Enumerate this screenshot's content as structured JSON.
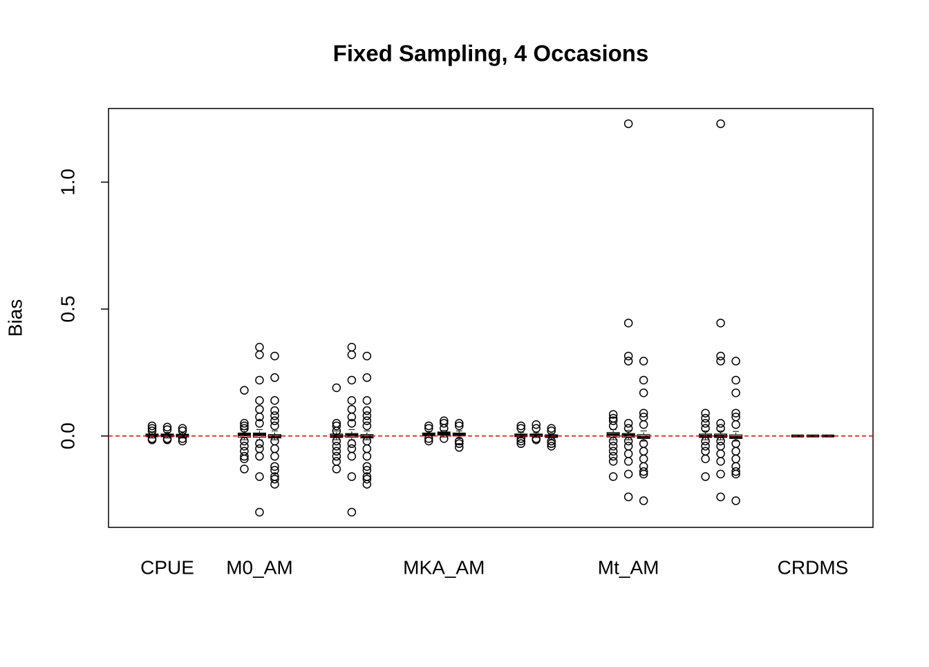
{
  "chart_data": {
    "type": "box",
    "title": "Fixed Sampling, 4 Occasions",
    "y_label": "Bias",
    "categories": [
      "CPUE",
      "M0_AM",
      null,
      "MKA_AM",
      null,
      "Mt_AM",
      null,
      "CRDMS"
    ],
    "ylim": [
      -0.36,
      1.29
    ],
    "yticks": [
      {
        "value": 0,
        "label": "0.0"
      },
      {
        "value": 0.5,
        "label": "0.5"
      },
      {
        "value": 1,
        "label": "1.0"
      }
    ],
    "reference_line": 0,
    "reference_color": "#e00000",
    "color": "#000000",
    "boxes": [
      [
        {
          "stats": [
            -0.008,
            -0.003,
            0.003,
            0.008,
            0.014
          ],
          "out": [
            0.04,
            0.03,
            0.02,
            -0.01,
            -0.015
          ]
        },
        {
          "stats": [
            -0.008,
            -0.003,
            0.003,
            0.008,
            0.014
          ],
          "out": [
            0.035,
            0.025,
            -0.01,
            -0.015
          ]
        },
        {
          "stats": [
            -0.008,
            -0.004,
            0.002,
            0.007,
            0.012
          ],
          "out": [
            0.03,
            0.02,
            -0.01,
            -0.02
          ]
        }
      ],
      [
        {
          "stats": [
            -0.015,
            -0.005,
            0.005,
            0.012,
            0.025
          ],
          "out": [
            0.18,
            0.05,
            0.04,
            0.03,
            -0.02,
            -0.04,
            -0.06,
            -0.08,
            -0.09,
            -0.13
          ]
        },
        {
          "stats": [
            -0.015,
            -0.005,
            0.005,
            0.012,
            0.025
          ],
          "out": [
            0.35,
            0.32,
            0.22,
            0.14,
            0.105,
            0.075,
            0.05,
            -0.03,
            -0.05,
            -0.08,
            -0.16,
            -0.3
          ]
        },
        {
          "stats": [
            -0.015,
            -0.008,
            -0.002,
            0.006,
            0.02
          ],
          "out": [
            0.315,
            0.23,
            0.14,
            0.1,
            0.08,
            0.06,
            0.04,
            -0.02,
            -0.05,
            -0.08,
            -0.12,
            -0.135,
            -0.16,
            -0.17,
            -0.19
          ]
        }
      ],
      [
        {
          "stats": [
            -0.015,
            -0.006,
            0.0,
            0.008,
            0.02
          ],
          "out": [
            0.19,
            0.05,
            0.04,
            0.02,
            -0.02,
            -0.04,
            -0.06,
            -0.08,
            -0.1,
            -0.13
          ]
        },
        {
          "stats": [
            -0.015,
            -0.005,
            0.003,
            0.01,
            0.025
          ],
          "out": [
            0.35,
            0.32,
            0.22,
            0.14,
            0.105,
            0.075,
            0.05,
            -0.03,
            -0.05,
            -0.08,
            -0.16,
            -0.3
          ]
        },
        {
          "stats": [
            -0.015,
            -0.008,
            -0.002,
            0.006,
            0.02
          ],
          "out": [
            0.315,
            0.23,
            0.14,
            0.1,
            0.08,
            0.06,
            0.04,
            -0.02,
            -0.05,
            -0.08,
            -0.12,
            -0.135,
            -0.16,
            -0.17,
            -0.19
          ]
        }
      ],
      [
        {
          "stats": [
            -0.006,
            0.0,
            0.006,
            0.012,
            0.018
          ],
          "out": [
            0.04,
            0.03,
            -0.01,
            -0.02
          ]
        },
        {
          "stats": [
            -0.004,
            0.003,
            0.01,
            0.016,
            0.022
          ],
          "out": [
            0.06,
            0.05,
            0.03,
            -0.01
          ]
        },
        {
          "stats": [
            -0.01,
            0.0,
            0.006,
            0.012,
            0.02
          ],
          "out": [
            0.05,
            0.04,
            -0.02,
            -0.03,
            -0.045
          ]
        }
      ],
      [
        {
          "stats": [
            -0.008,
            -0.003,
            0.002,
            0.008,
            0.014
          ],
          "out": [
            0.04,
            0.03,
            -0.01,
            -0.02,
            -0.03
          ]
        },
        {
          "stats": [
            -0.006,
            -0.002,
            0.003,
            0.008,
            0.013
          ],
          "out": [
            0.045,
            0.03,
            -0.01,
            -0.015
          ]
        },
        {
          "stats": [
            -0.012,
            -0.006,
            -0.001,
            0.005,
            0.01
          ],
          "out": [
            0.03,
            0.02,
            -0.02,
            -0.03,
            -0.04
          ]
        }
      ],
      [
        {
          "stats": [
            -0.015,
            -0.004,
            0.006,
            0.014,
            0.025
          ],
          "out": [
            0.085,
            0.07,
            0.06,
            0.04,
            -0.02,
            -0.04,
            -0.06,
            -0.08,
            -0.1,
            -0.16
          ]
        },
        {
          "stats": [
            -0.015,
            -0.005,
            0.003,
            0.01,
            0.022
          ],
          "out": [
            1.23,
            0.445,
            0.315,
            0.295,
            0.05,
            0.03,
            -0.02,
            -0.04,
            -0.07,
            -0.1,
            -0.15,
            -0.24
          ]
        },
        {
          "stats": [
            -0.02,
            -0.01,
            -0.003,
            0.006,
            0.02
          ],
          "out": [
            0.295,
            0.22,
            0.17,
            0.09,
            0.075,
            0.045,
            -0.03,
            -0.06,
            -0.09,
            -0.12,
            -0.14,
            -0.15,
            -0.255
          ]
        }
      ],
      [
        {
          "stats": [
            -0.015,
            -0.006,
            0.0,
            0.008,
            0.02
          ],
          "out": [
            0.09,
            0.07,
            0.05,
            0.03,
            -0.02,
            -0.04,
            -0.06,
            -0.09,
            -0.16
          ]
        },
        {
          "stats": [
            -0.015,
            -0.006,
            0.0,
            0.008,
            0.02
          ],
          "out": [
            1.23,
            0.445,
            0.315,
            0.295,
            0.05,
            0.03,
            -0.02,
            -0.04,
            -0.07,
            -0.1,
            -0.15,
            -0.24
          ]
        },
        {
          "stats": [
            -0.02,
            -0.01,
            -0.004,
            0.005,
            0.018
          ],
          "out": [
            0.295,
            0.22,
            0.17,
            0.09,
            0.075,
            0.045,
            -0.03,
            -0.06,
            -0.09,
            -0.12,
            -0.14,
            -0.15,
            -0.255
          ]
        }
      ],
      [
        {
          "stats": [
            -0.003,
            -0.001,
            0.0,
            0.001,
            0.003
          ],
          "out": []
        },
        {
          "stats": [
            -0.003,
            -0.001,
            0.0,
            0.001,
            0.003
          ],
          "out": []
        },
        {
          "stats": [
            -0.003,
            -0.001,
            0.0,
            0.001,
            0.003
          ],
          "out": []
        }
      ]
    ]
  }
}
